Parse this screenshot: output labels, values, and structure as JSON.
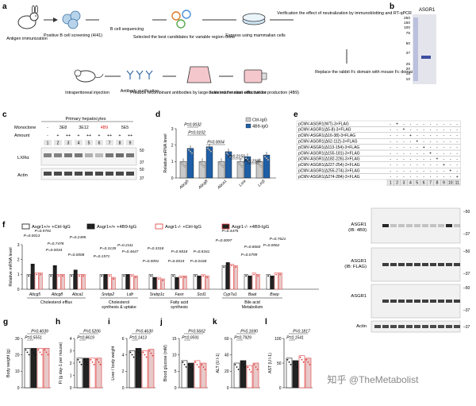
{
  "panels": {
    "a": {
      "letter": "a",
      "steps": [
        "Antigen immunization",
        "Positive B cell screening (4/41)",
        "B cell sequencing",
        "Selected the best candidates for variable region clone",
        "Express using mammalian cells",
        "Verification the effect of neutralization by immunoblotting and RT-qPCR",
        "Replace the rabbit Fc domain with mouse Fc domain",
        "Selected the most effective for production (4B9)",
        "Produce recombinant antibodies by large-scale mammalian cells culture",
        "Antibody purification",
        "Intraperitoneal injection"
      ]
    },
    "b": {
      "letter": "b",
      "title": "ASGR1",
      "markers": [
        "250",
        "150",
        "100",
        "75",
        "50",
        "37",
        "25",
        "20",
        "15",
        "10"
      ]
    },
    "c": {
      "letter": "c",
      "header": "Primary hepatocytes",
      "row_labels": [
        "Monoclone",
        "Amount"
      ],
      "columns": [
        "-",
        "3E8",
        "3E12",
        "4B9",
        "5E5"
      ],
      "amount": [
        "-",
        "+",
        "++",
        "+",
        "++",
        "+",
        "++",
        "+",
        "++"
      ],
      "lanes": [
        "1",
        "2",
        "3",
        "4",
        "5",
        "6",
        "7",
        "8",
        "9"
      ],
      "blots": [
        "LXRα",
        "Actin"
      ],
      "mw": [
        "50",
        "37",
        "50",
        "37"
      ]
    },
    "d": {
      "letter": "d",
      "ylabel": "Relative mRNA level",
      "legend": [
        "Ctrl-IgG",
        "4B9-IgG"
      ],
      "genes": [
        "Abcg5",
        "Abcg8",
        "Abca1",
        "Lxra",
        "Lxrβ"
      ],
      "pvals": [
        "P=0.0032",
        "P=0.0102",
        "P=0.0004",
        "P=0.2150",
        "P=0.2386"
      ],
      "yticks": [
        "0",
        "1",
        "2",
        "3"
      ],
      "chart_data": {
        "type": "bar",
        "categories": [
          "Abcg5",
          "Abcg8",
          "Abca1",
          "Lxra",
          "Lxrβ"
        ],
        "series": [
          {
            "name": "Ctrl-IgG",
            "values": [
              1.0,
              1.0,
              1.0,
              1.0,
              1.0
            ]
          },
          {
            "name": "4B9-IgG",
            "values": [
              1.8,
              1.9,
              1.6,
              1.3,
              1.4
            ]
          }
        ],
        "ylim": [
          0,
          3
        ]
      }
    },
    "e": {
      "letter": "e",
      "constructs": [
        "pCMV-ASGR1(WT)-3×FLAG",
        "pCMV-ASGR1(Δ5-8)-3×FLAG",
        "pCMV-ASGR1(Δ16-38)-3×FLAG",
        "pCMV-ASGR1(Δ62-112)-3×FLAG",
        "pCMV-ASGR1(Δ113-154)-3×FLAG",
        "pCMV-ASGR1(Δ155-181)-3×FLAG",
        "pCMV-ASGR1(Δ182-226)-3×FLAG",
        "pCMV-ASGR1(Δ227-254)-3×FLAG",
        "pCMV-ASGR1(Δ255-274)-3×FLAG",
        "pCMV-ASGR1(Δ274-284)-3×FLAG"
      ],
      "lanes": [
        "1",
        "2",
        "3",
        "4",
        "5",
        "6",
        "7",
        "8",
        "9",
        "10",
        "11"
      ],
      "blots": [
        "ASGR1 (IB: 4B9)",
        "ASGR1 (IB: FLAG)",
        "ASGR1",
        "Actin"
      ],
      "mw": [
        "50",
        "37",
        "50",
        "37",
        "50",
        "37",
        "37"
      ],
      "plus": "+",
      "minus": "-"
    },
    "f": {
      "letter": "f",
      "legend": [
        "Asgr1+/+ +Ctrl-IgG",
        "Asgr1+/+ +4B9-IgG",
        "Asgr1-/- +Ctrl-IgG",
        "Asgr1-/- +4B9-IgG"
      ],
      "ylabel": "Relative mRNA level",
      "yticks": [
        "0",
        "1",
        "2",
        "3"
      ],
      "genes": [
        "Abcg5",
        "Abcg8",
        "Abca1",
        "Srebp2",
        "Ldlr",
        "Srebp1c",
        "Fasn",
        "Scd1",
        "Cyp7a1",
        "Baat",
        "Bsep"
      ],
      "groups": [
        "Cholesterol efflux",
        "Cholesterol synthesis & uptake",
        "Fatty acid synthesis",
        "Bile acid Metabolism"
      ],
      "pvals": [
        "P=0.0013",
        "P=0.9791",
        "P=0.7478",
        "P=0.0034",
        "P=0.2495",
        "P=0.0008",
        "P=0.3135",
        "P=0.1571",
        "P=0.4647",
        "P=0.2111",
        "P=0.3318",
        "P=0.0091",
        "P=0.5818",
        "P=0.0015",
        "P=0.8341",
        "P=0.0168",
        "P=0.4475",
        "P=0.0097",
        "P=0.8660",
        "P=0.0799",
        "P=0.7621",
        "P=0.0062"
      ]
    },
    "g": {
      "letter": "g",
      "ylabel": "Body weight (g)",
      "p1": "P=0.4039",
      "p2": "P=0.5551",
      "yticks": [
        "0",
        "10",
        "20",
        "30"
      ]
    },
    "h": {
      "letter": "h",
      "ylabel": "FI (g day-1 per mouse)",
      "p1": "P=0.5206",
      "p2": "P=0.8619",
      "yticks": [
        "0",
        "1",
        "2",
        "3",
        "4"
      ]
    },
    "i": {
      "letter": "i",
      "ylabel": "Liver / body weight",
      "p1": "P=0.4630",
      "p2": "P=0.1413",
      "yticks": [
        "0",
        "2",
        "4",
        "6"
      ]
    },
    "j": {
      "letter": "j",
      "ylabel": "Blood glucose (mM)",
      "p1": "P=0.5662",
      "p2": "P=0.0591",
      "yticks": [
        "0",
        "5",
        "10",
        "15"
      ]
    },
    "k": {
      "letter": "k",
      "ylabel": "ALT (U l-1)",
      "p1": "P=0.1690",
      "p2": "P=0.7929",
      "yticks": [
        "0",
        "20",
        "40",
        "60"
      ]
    },
    "l": {
      "letter": "l",
      "ylabel": "AST (U l-1)",
      "p1": "P=0.1817",
      "p2": "P=0.1541",
      "yticks": [
        "0",
        "50",
        "100"
      ]
    }
  },
  "watermark": "知乎 @TheMetabolist"
}
